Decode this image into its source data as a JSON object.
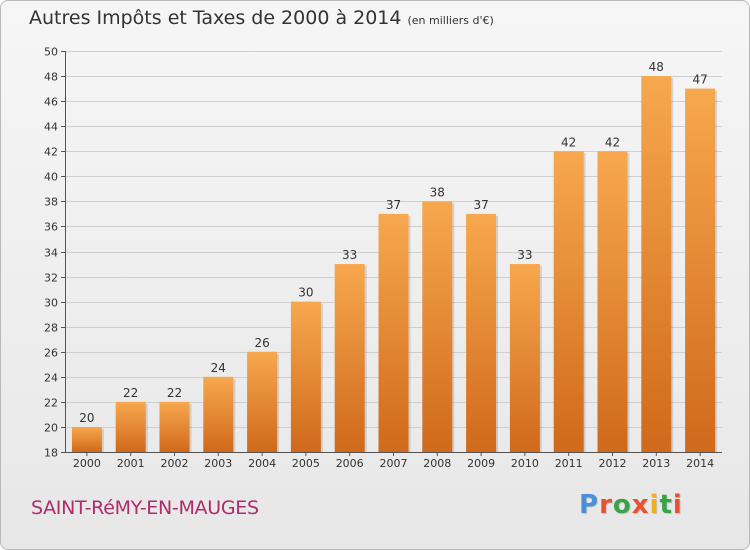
{
  "title": {
    "main": "Autres Impôts et Taxes de 2000 à 2014",
    "sub": "(en milliers d'€)"
  },
  "place_name": "SAINT-RéMY-EN-MAUGES",
  "logo": {
    "text": "Proxiti",
    "letter_colors": [
      "#4a90d9",
      "#e8502f",
      "#3aa34a",
      "#e8502f",
      "#f2b01e",
      "#3aa34a",
      "#e8502f"
    ]
  },
  "colors": {
    "bar_top": "#f7a84e",
    "bar_bottom": "#d0691b",
    "grid": "#cfcfcf",
    "text": "#333333"
  },
  "chart_data": {
    "type": "bar",
    "categories": [
      "2000",
      "2001",
      "2002",
      "2003",
      "2004",
      "2005",
      "2006",
      "2007",
      "2008",
      "2009",
      "2010",
      "2011",
      "2012",
      "2013",
      "2014"
    ],
    "values": [
      20,
      22,
      22,
      24,
      26,
      30,
      33,
      37,
      38,
      37,
      33,
      42,
      42,
      48,
      47
    ],
    "ylim": [
      18,
      50
    ],
    "yticks": [
      "18",
      "20",
      "22",
      "24",
      "26",
      "28",
      "30",
      "32",
      "34",
      "36",
      "38",
      "40",
      "42",
      "44",
      "46",
      "48",
      "50"
    ],
    "grid": true
  }
}
